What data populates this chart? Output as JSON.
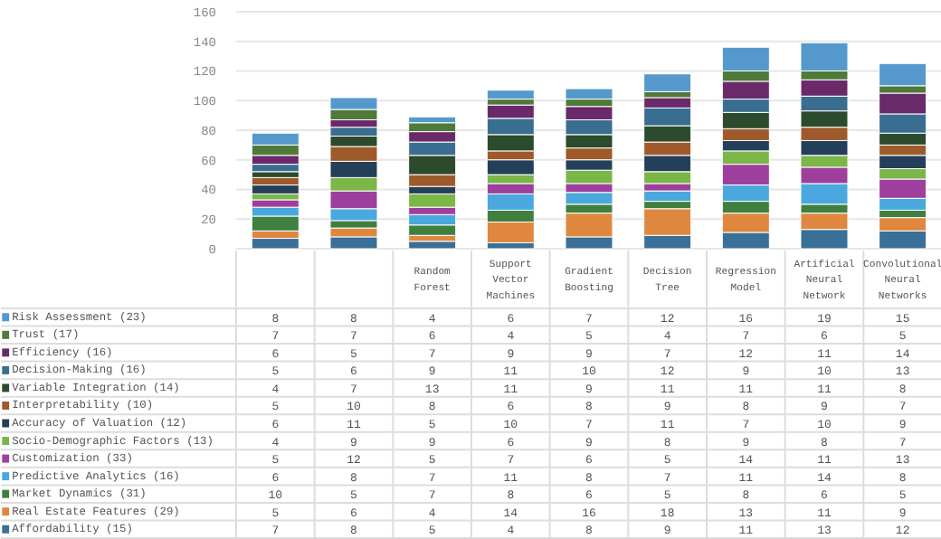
{
  "chart_data": {
    "type": "bar",
    "stacked": true,
    "data_labels": true,
    "legend": "bottom left",
    "grid": "y",
    "categories": [
      null,
      null,
      "Random Forest",
      "Support Vector Machines",
      "Gradient Boosting",
      "Decision Tree",
      "Regression Model",
      "Artificial Neural Network",
      "Convolutional Neural Networks"
    ],
    "ylim": [
      0,
      163
    ],
    "yticks": [
      0,
      20,
      40,
      60,
      80,
      100,
      120,
      140,
      160
    ],
    "series": [
      {
        "name": "Affordability (15)",
        "color": "#3a6f98",
        "values": [
          7,
          8,
          5,
          4,
          8,
          9,
          11,
          13,
          12
        ]
      },
      {
        "name": "Real Estate Features (29)",
        "color": "#e0873f",
        "values": [
          5,
          6,
          4,
          14,
          16,
          18,
          13,
          11,
          9
        ]
      },
      {
        "name": "Market Dynamics (31)",
        "color": "#3f7f3f",
        "values": [
          10,
          5,
          7,
          8,
          6,
          5,
          8,
          6,
          5
        ]
      },
      {
        "name": "Predictive Analytics (16)",
        "color": "#4aa8de",
        "values": [
          6,
          8,
          7,
          11,
          8,
          7,
          11,
          14,
          8
        ]
      },
      {
        "name": "Customization (33)",
        "color": "#9e3f9e",
        "values": [
          5,
          12,
          5,
          7,
          6,
          5,
          14,
          11,
          13
        ]
      },
      {
        "name": "Socio-Demographic Factors (13)",
        "color": "#7ab648",
        "values": [
          4,
          9,
          9,
          6,
          9,
          8,
          9,
          8,
          7
        ]
      },
      {
        "name": "Accuracy of Valuation (12)",
        "color": "#243f5a",
        "values": [
          6,
          11,
          5,
          10,
          7,
          11,
          7,
          10,
          9
        ]
      },
      {
        "name": "Interpretability (10)",
        "color": "#9e5a2a",
        "values": [
          5,
          10,
          8,
          6,
          8,
          9,
          8,
          9,
          7
        ]
      },
      {
        "name": "Variable Integration (14)",
        "color": "#2c4a2c",
        "values": [
          4,
          7,
          13,
          11,
          9,
          11,
          11,
          11,
          8
        ]
      },
      {
        "name": "Decision-Making (16)",
        "color": "#3a6e90",
        "values": [
          5,
          6,
          9,
          11,
          10,
          12,
          9,
          10,
          13
        ]
      },
      {
        "name": "Efficiency (16)",
        "color": "#6a2a6a",
        "values": [
          6,
          5,
          7,
          9,
          9,
          7,
          12,
          11,
          14
        ]
      },
      {
        "name": "Trust (17)",
        "color": "#4f7a3a",
        "values": [
          7,
          7,
          6,
          4,
          5,
          4,
          7,
          6,
          5
        ]
      },
      {
        "name": "Risk Assessment (23)",
        "color": "#5599cc",
        "values": [
          8,
          8,
          4,
          6,
          7,
          12,
          16,
          19,
          15
        ]
      }
    ]
  }
}
